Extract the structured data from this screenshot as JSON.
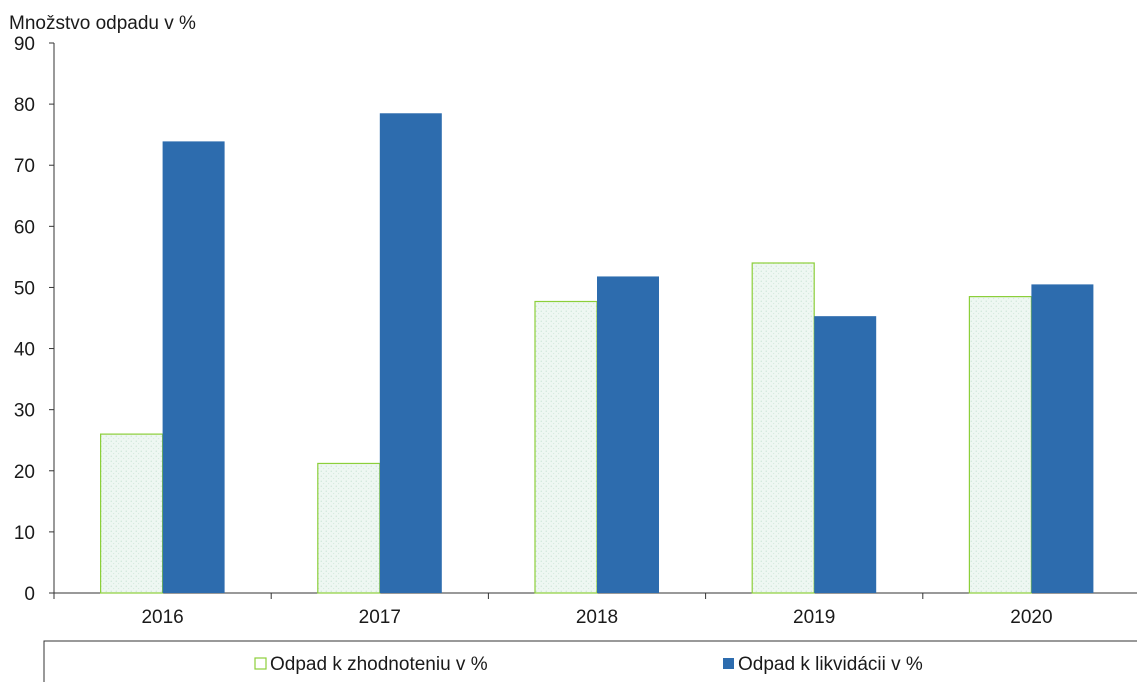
{
  "chart_data": {
    "type": "bar",
    "ylabel": "Množstvo odpadu v %",
    "xlabel": "",
    "ylim": [
      0,
      90
    ],
    "yticks": [
      "0",
      "10",
      "20",
      "30",
      "40",
      "50",
      "60",
      "70",
      "80",
      "90"
    ],
    "categories": [
      "2016",
      "2017",
      "2018",
      "2019",
      "2020"
    ],
    "series": [
      {
        "name": "Odpad k zhodnoteniu v %",
        "values": [
          26,
          21.2,
          47.7,
          54,
          48.5
        ],
        "color": "#ecf6f1",
        "border_color": "#8ccf3a"
      },
      {
        "name": "Odpad k likvidácii v %",
        "values": [
          73.9,
          78.5,
          51.8,
          45.3,
          50.5
        ],
        "color": "#2d6cae",
        "border_color": "#2d6cae"
      }
    ],
    "legend_position": "bottom",
    "grid": false
  }
}
